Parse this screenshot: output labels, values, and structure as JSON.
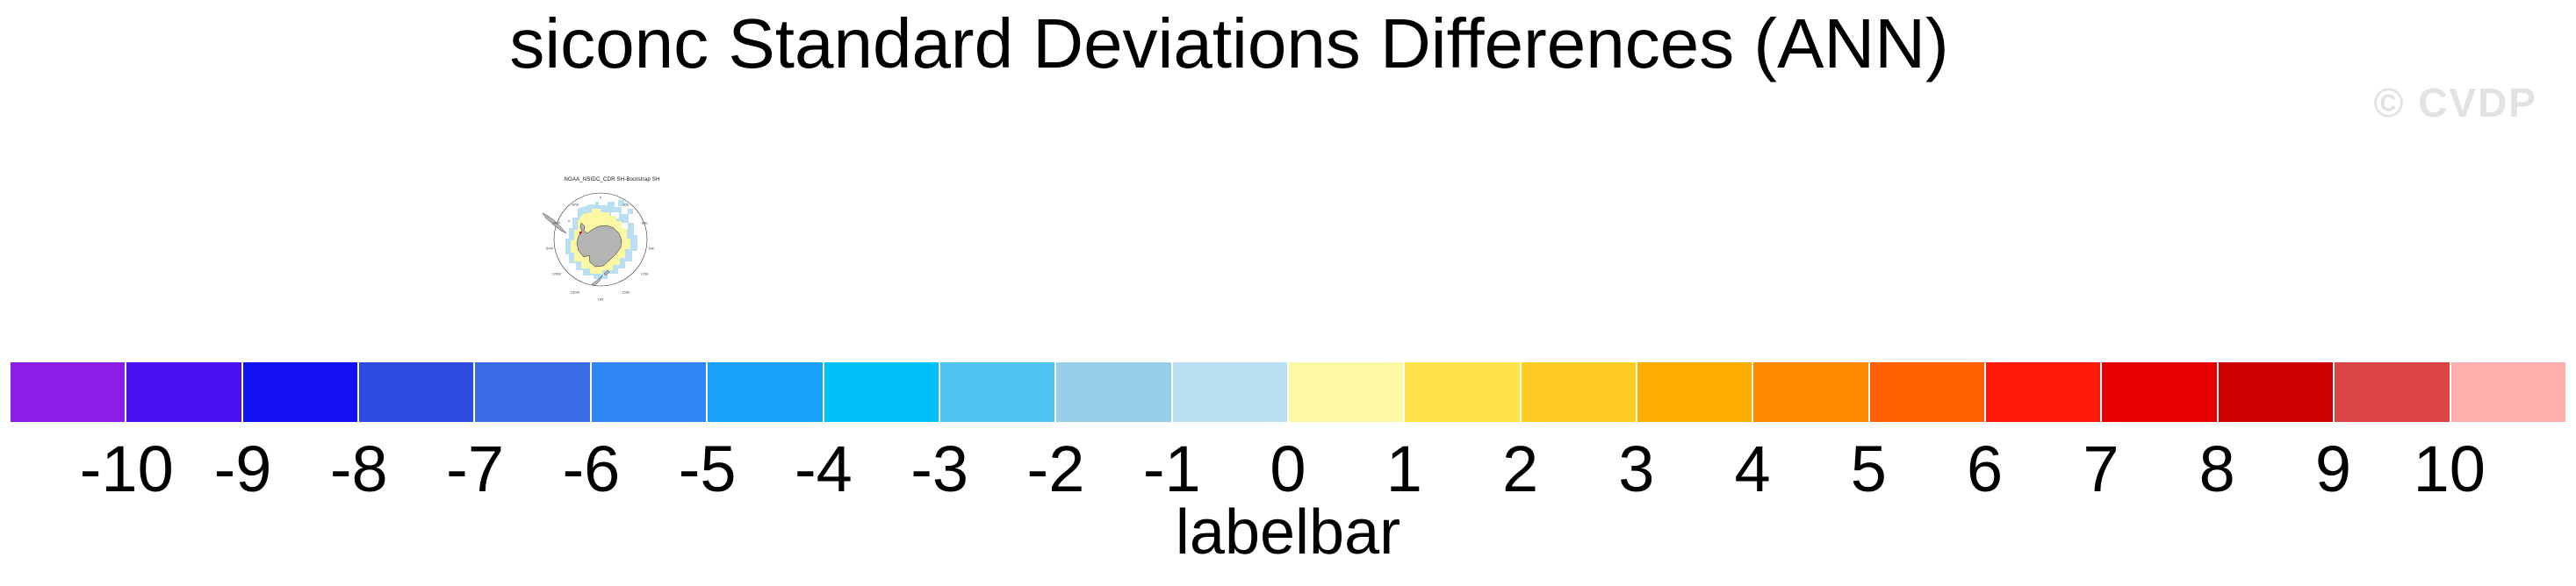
{
  "figure": {
    "title": "siconc Standard Deviations Differences (ANN)",
    "watermark": "© CVDP",
    "watermark_color": "#E2E2E2",
    "background_color": "#FFFFFF"
  },
  "map_panel": {
    "title": "NOAA_NSIDC_CDR SH-Bootstrap SH",
    "projection_labels": [
      "0",
      "30E",
      "60E",
      "90E",
      "120E",
      "150E",
      "180",
      "150W",
      "120W",
      "90W",
      "60W",
      "30W"
    ],
    "colors": {
      "land": "#B4B4B4",
      "coastline": "#222222",
      "map_boundary": "#333333",
      "negative_ice": "#BADFF2",
      "positive_ice": "#FBF7A3",
      "extreme_ice": "#E60000",
      "ocean": "#FFFFFF"
    }
  },
  "colorbar": {
    "label": "labelbar",
    "tick_labels": [
      "-10",
      "-9",
      "-8",
      "-7",
      "-6",
      "-5",
      "-4",
      "-3",
      "-2",
      "-1",
      "0",
      "1",
      "2",
      "3",
      "4",
      "5",
      "6",
      "7",
      "8",
      "9",
      "10"
    ],
    "colors": [
      "#8A1EE6",
      "#4A10F0",
      "#1010F0",
      "#2D4BE0",
      "#3A6BE6",
      "#2E86F5",
      "#18A0FA",
      "#00C0FA",
      "#4FC4F2",
      "#97CFEA",
      "#BADFF2",
      "#FBF7A3",
      "#FFE348",
      "#FFCC24",
      "#FFAE00",
      "#FF8A00",
      "#FF5F00",
      "#FF1A08",
      "#E60000",
      "#CC0000",
      "#DC4444",
      "#FFADAD"
    ]
  },
  "chart_data": {
    "type": "heatmap",
    "title": "siconc Standard Deviations Differences (ANN)",
    "panels": [
      {
        "title": "NOAA_NSIDC_CDR SH-Bootstrap SH",
        "projection": "southern-hemisphere polar stereographic",
        "visible_values_legend": {
          "light_blue_patches": "approximately -1 to 0",
          "pale_yellow_patches": "approximately 0 to 1",
          "small_red_patch": "approximately 8 to 9"
        }
      }
    ],
    "colorbar_label": "labelbar",
    "levels": [
      -10,
      -9,
      -8,
      -7,
      -6,
      -5,
      -4,
      -3,
      -2,
      -1,
      0,
      1,
      2,
      3,
      4,
      5,
      6,
      7,
      8,
      9,
      10
    ],
    "palette": [
      "#8A1EE6",
      "#4A10F0",
      "#1010F0",
      "#2D4BE0",
      "#3A6BE6",
      "#2E86F5",
      "#18A0FA",
      "#00C0FA",
      "#4FC4F2",
      "#97CFEA",
      "#BADFF2",
      "#FBF7A3",
      "#FFE348",
      "#FFCC24",
      "#FFAE00",
      "#FF8A00",
      "#FF5F00",
      "#FF1A08",
      "#E60000",
      "#CC0000",
      "#DC4444",
      "#FFADAD"
    ],
    "legend_position": "bottom",
    "grid": false
  }
}
